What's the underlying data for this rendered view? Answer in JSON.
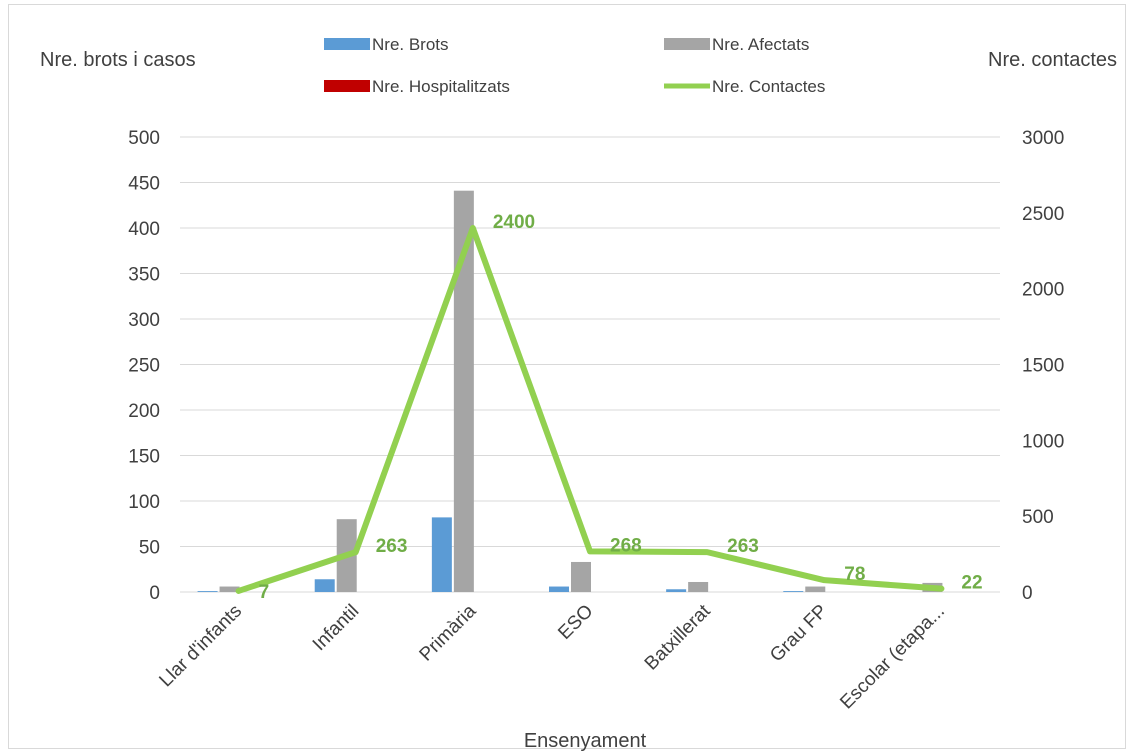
{
  "chart_data": {
    "type": "bar",
    "xlabel": "Ensenyament",
    "ylabel_left": "Nre. brots i casos",
    "ylabel_right": "Nre. contactes",
    "categories": [
      "Llar d'infants",
      "Infantil",
      "Primària",
      "ESO",
      "Batxillerat",
      "Grau FP",
      "Escolar (etapa..."
    ],
    "ylim_left": [
      0,
      500
    ],
    "yticks_left": [
      0,
      50,
      100,
      150,
      200,
      250,
      300,
      350,
      400,
      450,
      500
    ],
    "ylim_right": [
      0,
      3000
    ],
    "yticks_right": [
      0,
      500,
      1000,
      1500,
      2000,
      2500,
      3000
    ],
    "grid": true,
    "legend_position": "top",
    "series": [
      {
        "name": "Nre. Brots",
        "type": "bar",
        "axis": "left",
        "color": "#5b9bd5",
        "values": [
          1,
          14,
          82,
          6,
          3,
          1,
          0
        ]
      },
      {
        "name": "Nre. Afectats",
        "type": "bar",
        "axis": "left",
        "color": "#a5a5a5",
        "values": [
          6,
          80,
          441,
          33,
          11,
          6,
          10
        ]
      },
      {
        "name": "Nre. Hospitalitzats",
        "type": "bar",
        "axis": "left",
        "color": "#c00000",
        "values": [
          0,
          0,
          0,
          0,
          0,
          0,
          0
        ]
      },
      {
        "name": "Nre.  Contactes",
        "type": "line",
        "axis": "right",
        "color": "#92d050",
        "values": [
          7,
          263,
          2400,
          268,
          263,
          78,
          22
        ],
        "data_labels": [
          "7",
          "263",
          "2400",
          "268",
          "263",
          "78",
          "22"
        ]
      }
    ]
  }
}
